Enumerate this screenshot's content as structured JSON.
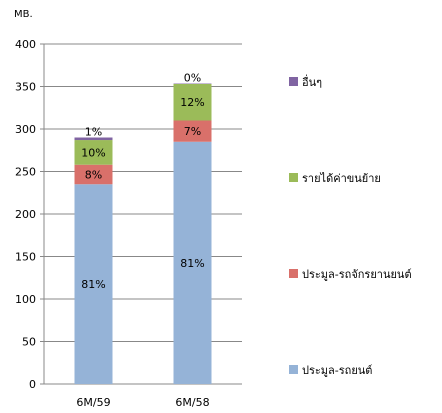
{
  "chart_data": {
    "type": "bar",
    "stacked": true,
    "unit_label": "MB.",
    "categories": [
      "6M/59",
      "6M/58"
    ],
    "series": [
      {
        "name": "ประมูล-รถยนต์",
        "color": "#95b3d7",
        "values": [
          235,
          285
        ],
        "labels": [
          "81%",
          "81%"
        ]
      },
      {
        "name": "ประมูล-รถจักรยานยนต์",
        "color": "#d9706a",
        "values": [
          23,
          25
        ],
        "labels": [
          "8%",
          "7%"
        ]
      },
      {
        "name": "รายได้ค่าขนย้าย",
        "color": "#9bbb59",
        "values": [
          29,
          43
        ],
        "labels": [
          "10%",
          "12%"
        ]
      },
      {
        "name": "อื่นๆ",
        "color": "#8064a2",
        "values": [
          3,
          0.5
        ],
        "labels": [
          "1%",
          "0%"
        ]
      }
    ],
    "yticks": [
      "0",
      "50",
      "100",
      "150",
      "200",
      "250",
      "300",
      "350",
      "400"
    ],
    "ylim": [
      0,
      400
    ],
    "grid": true,
    "legend_placement": "right"
  }
}
